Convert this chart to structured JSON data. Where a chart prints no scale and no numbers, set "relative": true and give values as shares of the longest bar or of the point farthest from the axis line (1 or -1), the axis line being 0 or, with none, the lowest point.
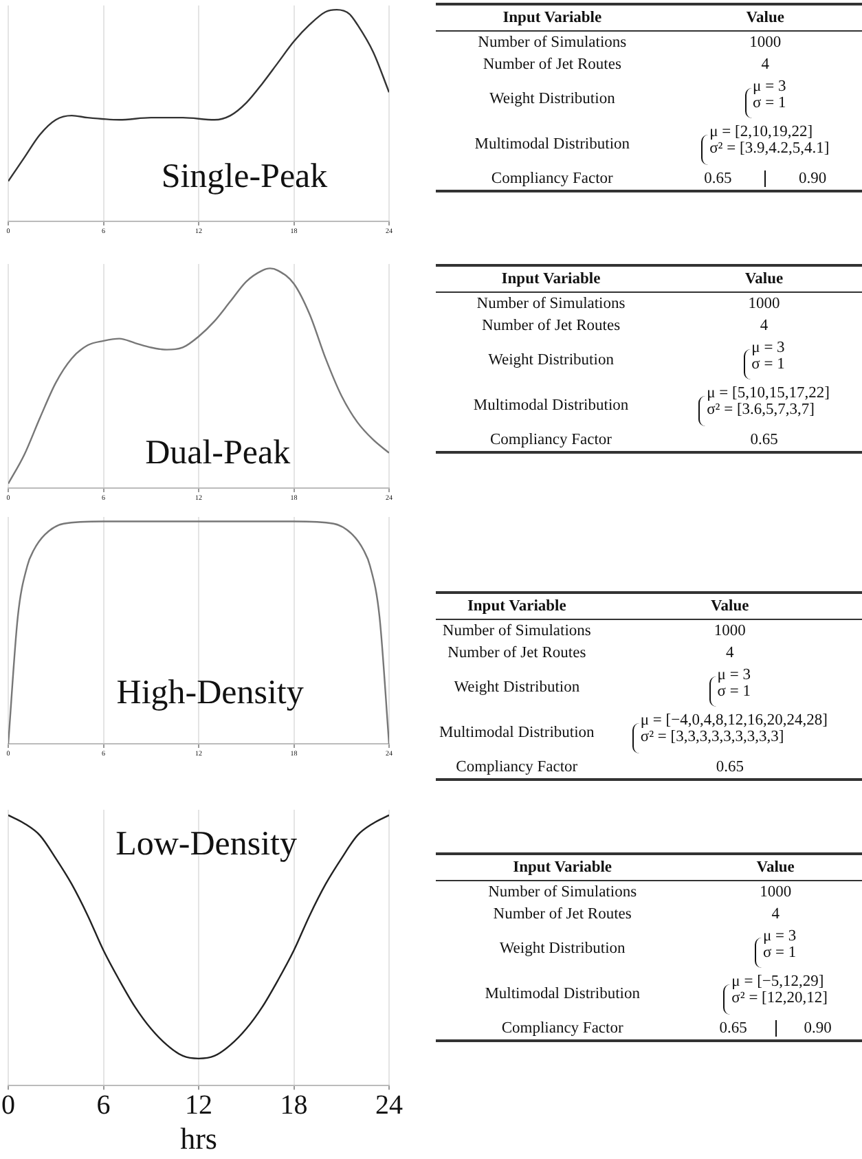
{
  "chart_data": [
    {
      "type": "line",
      "title": "Single-Peak",
      "relative": true,
      "x": [
        0,
        1,
        2,
        3,
        4,
        5,
        7,
        9,
        11,
        13,
        14,
        15,
        16,
        17,
        18,
        19,
        20,
        20.7,
        21.5,
        22,
        23,
        24
      ],
      "series": [
        {
          "color": "#333333",
          "values": [
            0.19,
            0.3,
            0.41,
            0.48,
            0.5,
            0.49,
            0.48,
            0.49,
            0.49,
            0.48,
            0.5,
            0.56,
            0.65,
            0.75,
            0.85,
            0.93,
            0.99,
            1.0,
            0.98,
            0.93,
            0.8,
            0.61
          ]
        }
      ],
      "xlim": [
        0,
        24
      ],
      "xticks": [
        0,
        6,
        12,
        18,
        24
      ],
      "grid": "x"
    },
    {
      "type": "other",
      "annotations": [
        "Input Variable",
        "Value",
        "Number of Simulations",
        "1000",
        "Number of Jet Routes",
        "4",
        "Weight Distribution",
        "μ = 3\nσ = 1",
        "Multimodal Distribution",
        "μ = [2,10,19,22]\nσ² = [3.9,4.2,5,4.1]",
        "Compliancy Factor",
        "0.65\t0.90"
      ]
    },
    {
      "type": "line",
      "title": "Dual-Peak",
      "relative": true,
      "x": [
        0,
        1,
        2,
        3,
        4,
        5,
        6,
        7,
        8,
        9,
        10,
        11,
        12,
        13,
        14,
        15,
        16,
        16.5,
        17,
        18,
        19,
        20,
        21,
        22,
        23,
        24
      ],
      "series": [
        {
          "color": "#777777",
          "values": [
            0.02,
            0.15,
            0.32,
            0.48,
            0.59,
            0.65,
            0.67,
            0.68,
            0.66,
            0.64,
            0.63,
            0.64,
            0.69,
            0.76,
            0.85,
            0.94,
            0.99,
            1.0,
            0.99,
            0.93,
            0.79,
            0.59,
            0.42,
            0.3,
            0.22,
            0.16
          ]
        }
      ],
      "xlim": [
        0,
        24
      ],
      "xticks": [
        0,
        6,
        12,
        18,
        24
      ],
      "grid": "x"
    },
    {
      "type": "other",
      "annotations": [
        "Input Variable",
        "Value",
        "Number of Simulations",
        "1000",
        "Number of Jet Routes",
        "4",
        "Weight Distribution",
        "μ = 3\nσ = 1",
        "Multimodal Distribution",
        "μ = [5,10,15,17,22]\nσ² = [3.6,5,7,3,7]",
        "Compliancy Factor",
        "0.65"
      ]
    },
    {
      "type": "line",
      "title": "High-Density",
      "relative": true,
      "x": [
        0,
        0.6,
        1.2,
        1.6,
        2.3,
        3.5,
        6,
        9,
        12,
        15,
        18,
        20.5,
        21.7,
        22.4,
        22.8,
        23.4,
        24
      ],
      "series": [
        {
          "color": "#777777",
          "values": [
            0,
            0.57,
            0.8,
            0.87,
            0.94,
            0.99,
            1.0,
            1.0,
            1.0,
            1.0,
            1.0,
            0.99,
            0.94,
            0.87,
            0.8,
            0.57,
            0
          ]
        }
      ],
      "xlim": [
        0,
        24
      ],
      "xticks": [
        0,
        6,
        12,
        18,
        24
      ],
      "grid": "x"
    },
    {
      "type": "other",
      "annotations": [
        "Input Variable",
        "Value",
        "Number of Simulations",
        "1000",
        "Number of Jet Routes",
        "4",
        "Weight Distribution",
        "μ = 3\nσ = 1",
        "Multimodal Distribution",
        "μ = [−4,0,4,8,12,16,20,24,28]\nσ² = [3,3,3,3,3,3,3,3,3]",
        "Compliancy Factor",
        "0.65"
      ]
    },
    {
      "type": "line",
      "title": "Low-Density",
      "xlabel": "hrs",
      "relative": true,
      "x": [
        0,
        1,
        2,
        3,
        4,
        5,
        6,
        7,
        8,
        9,
        10,
        11,
        12,
        13,
        14,
        15,
        16,
        17,
        18,
        19,
        20,
        21,
        22,
        23,
        24
      ],
      "series": [
        {
          "color": "#222222",
          "values": [
            1.0,
            0.97,
            0.925,
            0.84,
            0.745,
            0.63,
            0.5,
            0.39,
            0.29,
            0.21,
            0.15,
            0.11,
            0.1,
            0.11,
            0.15,
            0.21,
            0.29,
            0.39,
            0.5,
            0.63,
            0.745,
            0.84,
            0.925,
            0.97,
            1.0
          ]
        }
      ],
      "xlim": [
        0,
        24
      ],
      "xticks": [
        0,
        6,
        12,
        18,
        24
      ],
      "grid": "x"
    },
    {
      "type": "other",
      "annotations": [
        "Input Variable",
        "Value",
        "Number of Simulations",
        "1000",
        "Number of Jet Routes",
        "4",
        "Weight Distribution",
        "μ = 3\nσ = 1",
        "Multimodal Distribution",
        "μ = [−5,12,29]\nσ² = [12,20,12]",
        "Compliancy Factor",
        "0.65\t0.90"
      ]
    }
  ]
}
